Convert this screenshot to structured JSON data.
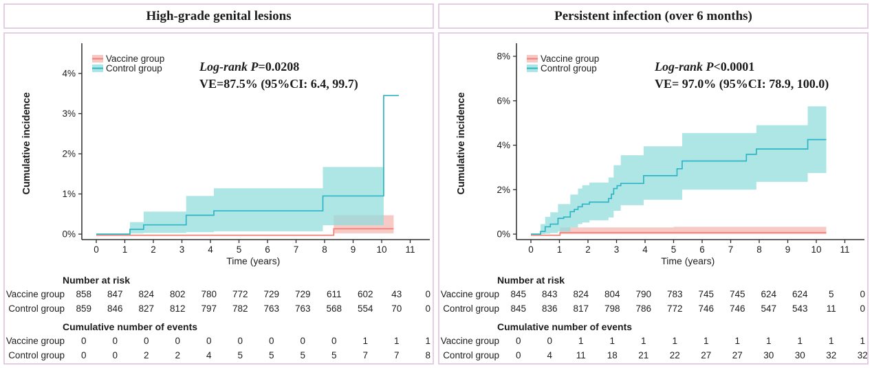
{
  "figure": {
    "shared_ylabel": "Cumulative incidence",
    "shared_xlabel": "Time (years)",
    "row_labels": [
      "Vaccine group",
      "Control group"
    ],
    "border_color": "#e3cee3"
  },
  "chart_data": [
    {
      "type": "line",
      "subtype": "kaplan-meier cumulative incidence step curves with 95% CI bands",
      "title": "High-grade genital lesions",
      "xlabel": "Time (years)",
      "ylabel": "Cumulative incidence",
      "xticks": [
        0,
        1,
        2,
        3,
        4,
        5,
        6,
        7,
        8,
        9,
        10,
        11
      ],
      "xlim": [
        0,
        11.5
      ],
      "yticks": [
        0,
        1,
        2,
        3,
        4
      ],
      "ytick_labels": [
        "0%",
        "1%",
        "2%",
        "3%",
        "4%"
      ],
      "ylim": [
        0,
        4.7
      ],
      "y_units": "percent",
      "grid": false,
      "legend_position": "top-left-inside",
      "legend": [
        {
          "label": "Vaccine group",
          "line_color": "#ef8177",
          "fill_color": "#f5b5b0"
        },
        {
          "label": "Control group",
          "line_color": "#2db4c5",
          "fill_color": "#8fdcdc"
        }
      ],
      "annotation": {
        "logrank_italic": "Log-rank P",
        "logrank_value": "=0.0208",
        "ve_line": "VE=87.5% (95%CI: 6.4, 99.7)"
      },
      "series": [
        {
          "name": "Vaccine group",
          "line_color": "#ef8177",
          "fill_color": "#f5b5b0",
          "curve": [
            [
              0,
              0
            ],
            [
              8.32,
              0.16
            ],
            [
              10.42,
              0.16
            ]
          ],
          "ci_band": {
            "steps": [
              [
                8.32,
                0.02,
                0.47
              ]
            ],
            "x_end": 10.42
          }
        },
        {
          "name": "Control group",
          "line_color": "#2db4c5",
          "fill_color": "#8fdcdc",
          "curve": [
            [
              0,
              0
            ],
            [
              1.18,
              0.12
            ],
            [
              1.66,
              0.23
            ],
            [
              3.15,
              0.47
            ],
            [
              4.12,
              0.58
            ],
            [
              7.94,
              0.95
            ],
            [
              10.07,
              3.45
            ],
            [
              10.6,
              3.45
            ]
          ],
          "ci_band": {
            "steps": [
              [
                1.18,
                0.02,
                0.3
              ],
              [
                1.66,
                0.03,
                0.56
              ],
              [
                3.15,
                0.05,
                0.95
              ],
              [
                4.12,
                0.07,
                1.14
              ],
              [
                7.94,
                0.22,
                1.67
              ]
            ],
            "x_end": 10.07
          }
        }
      ],
      "number_at_risk": {
        "header": "Number at risk",
        "rows": [
          {
            "label": "Vaccine group",
            "values": [
              858,
              847,
              824,
              802,
              780,
              772,
              729,
              729,
              611,
              602,
              43,
              0
            ]
          },
          {
            "label": "Control group",
            "values": [
              859,
              846,
              827,
              812,
              797,
              782,
              763,
              763,
              568,
              554,
              70,
              0
            ]
          }
        ]
      },
      "cumulative_events": {
        "header": "Cumulative number of events",
        "rows": [
          {
            "label": "Vaccine group",
            "values": [
              0,
              0,
              0,
              0,
              0,
              0,
              0,
              0,
              0,
              1,
              1,
              1
            ]
          },
          {
            "label": "Control group",
            "values": [
              0,
              0,
              2,
              2,
              4,
              5,
              5,
              5,
              5,
              7,
              7,
              8
            ]
          }
        ]
      }
    },
    {
      "type": "line",
      "subtype": "kaplan-meier cumulative incidence step curves with 95% CI bands",
      "title": "Persistent infection (over 6 months)",
      "xlabel": "Time (years)",
      "ylabel": "Cumulative incidence",
      "xticks": [
        0,
        1,
        2,
        3,
        4,
        5,
        6,
        7,
        8,
        9,
        10,
        11
      ],
      "xlim": [
        0,
        11.5
      ],
      "yticks": [
        0,
        2,
        4,
        6,
        8
      ],
      "ytick_labels": [
        "0%",
        "2%",
        "4%",
        "6%",
        "8%"
      ],
      "ylim": [
        0,
        8.3
      ],
      "y_units": "percent",
      "grid": false,
      "legend_position": "top-left-inside",
      "legend": [
        {
          "label": "Vaccine group",
          "line_color": "#ef8177",
          "fill_color": "#f5b5b0"
        },
        {
          "label": "Control group",
          "line_color": "#2db4c5",
          "fill_color": "#8fdcdc"
        }
      ],
      "annotation": {
        "logrank_italic": "Log-rank P",
        "logrank_value": "<0.0001",
        "ve_line": "VE= 97.0% (95%CI: 78.9, 100.0)"
      },
      "series": [
        {
          "name": "Vaccine group",
          "line_color": "#ef8177",
          "fill_color": "#f5b5b0",
          "curve": [
            [
              0,
              0
            ],
            [
              1.02,
              0.12
            ],
            [
              10.35,
              0.12
            ]
          ],
          "ci_band": {
            "steps": [
              [
                1.02,
                0.0,
                0.3
              ],
              [
                5.0,
                0.0,
                0.33
              ]
            ],
            "x_end": 10.35
          }
        },
        {
          "name": "Control group",
          "line_color": "#2db4c5",
          "fill_color": "#8fdcdc",
          "curve": [
            [
              0,
              0
            ],
            [
              0.34,
              0.12
            ],
            [
              0.5,
              0.33
            ],
            [
              0.68,
              0.45
            ],
            [
              0.95,
              0.71
            ],
            [
              1.15,
              0.77
            ],
            [
              1.38,
              1.01
            ],
            [
              1.52,
              1.11
            ],
            [
              1.65,
              1.23
            ],
            [
              1.8,
              1.35
            ],
            [
              2.05,
              1.44
            ],
            [
              2.72,
              1.6
            ],
            [
              2.82,
              1.8
            ],
            [
              2.9,
              2.05
            ],
            [
              3.02,
              2.18
            ],
            [
              3.15,
              2.28
            ],
            [
              3.95,
              2.63
            ],
            [
              5.12,
              2.94
            ],
            [
              5.3,
              3.29
            ],
            [
              7.55,
              3.59
            ],
            [
              7.9,
              3.83
            ],
            [
              9.7,
              4.25
            ],
            [
              10.35,
              4.25
            ]
          ],
          "ci_band": {
            "steps": [
              [
                0.34,
                0.0,
                0.45
              ],
              [
                0.5,
                0.02,
                0.78
              ],
              [
                0.68,
                0.05,
                0.98
              ],
              [
                0.95,
                0.12,
                1.35
              ],
              [
                1.38,
                0.3,
                1.78
              ],
              [
                1.65,
                0.45,
                2.05
              ],
              [
                1.8,
                0.52,
                2.2
              ],
              [
                2.05,
                0.62,
                2.32
              ],
              [
                2.72,
                0.75,
                2.55
              ],
              [
                2.9,
                1.05,
                3.1
              ],
              [
                3.15,
                1.3,
                3.55
              ],
              [
                3.95,
                1.55,
                3.95
              ],
              [
                5.3,
                2.0,
                4.55
              ],
              [
                7.9,
                2.35,
                4.9
              ],
              [
                9.7,
                2.75,
                5.75
              ]
            ],
            "x_end": 10.35
          }
        }
      ],
      "number_at_risk": {
        "header": "Number at risk",
        "rows": [
          {
            "label": "Vaccine group",
            "values": [
              845,
              843,
              824,
              804,
              790,
              783,
              745,
              745,
              624,
              624,
              5,
              0
            ]
          },
          {
            "label": "Control group",
            "values": [
              845,
              836,
              817,
              798,
              786,
              772,
              746,
              746,
              547,
              543,
              11,
              0
            ]
          }
        ]
      },
      "cumulative_events": {
        "header": "Cumulative number of events",
        "rows": [
          {
            "label": "Vaccine group",
            "values": [
              0,
              0,
              1,
              1,
              1,
              1,
              1,
              1,
              1,
              1,
              1,
              1
            ]
          },
          {
            "label": "Control group",
            "values": [
              0,
              4,
              11,
              18,
              21,
              22,
              27,
              27,
              30,
              30,
              32,
              32
            ]
          }
        ]
      }
    }
  ]
}
